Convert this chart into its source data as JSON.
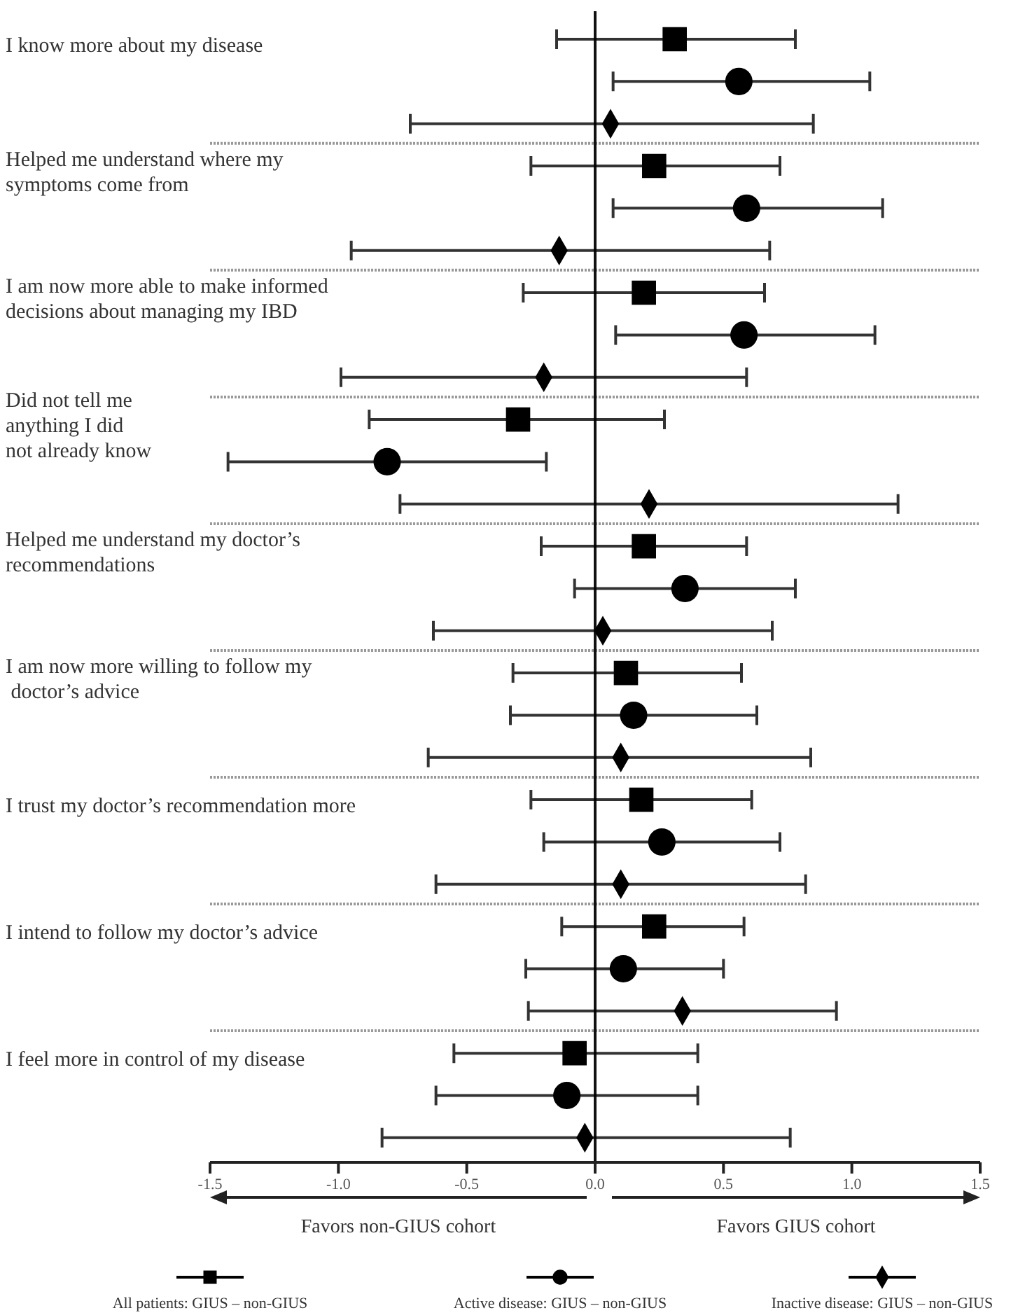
{
  "chart_data": {
    "type": "scatter",
    "orientation": "horizontal",
    "categories": [
      "I know more about my disease",
      null,
      null,
      "Helped me understand where my\nsymptoms come from",
      null,
      null,
      "I am now more able to make informed\ndecisions about managing my IBD",
      null,
      null,
      "Did not tell me\nanything I did\nnot already know",
      null,
      null,
      "Helped me understand my doctor’s\nrecommendations",
      null,
      null,
      "I am now more willing to follow my\n doctor’s advice",
      null,
      null,
      "I trust my doctor’s recommendation more",
      null,
      null,
      "I intend to follow my doctor’s advice",
      null,
      null,
      "I feel more in control of my disease",
      null,
      null
    ],
    "series": [
      {
        "name": "All patients: GIUS – non-GIUS",
        "color": "#000000",
        "marker": "square",
        "values": [
          0.31,
          null,
          null,
          0.23,
          null,
          null,
          0.19,
          null,
          null,
          -0.3,
          null,
          null,
          0.19,
          null,
          null,
          0.12,
          null,
          null,
          0.18,
          null,
          null,
          0.23,
          null,
          null,
          -0.08,
          null,
          null
        ],
        "errors": [
          [
            -0.15,
            0.78
          ],
          null,
          null,
          [
            -0.25,
            0.72
          ],
          null,
          null,
          [
            -0.28,
            0.66
          ],
          null,
          null,
          [
            -0.88,
            0.27
          ],
          null,
          null,
          [
            -0.21,
            0.59
          ],
          null,
          null,
          [
            -0.32,
            0.57
          ],
          null,
          null,
          [
            -0.25,
            0.61
          ],
          null,
          null,
          [
            -0.13,
            0.58
          ],
          null,
          null,
          [
            -0.55,
            0.4
          ],
          null,
          null
        ]
      },
      {
        "name": "Active disease: GIUS – non-GIUS",
        "color": "#000000",
        "marker": "circle",
        "values": [
          null,
          0.56,
          null,
          null,
          0.59,
          null,
          null,
          0.58,
          null,
          null,
          -0.81,
          null,
          null,
          0.35,
          null,
          null,
          0.15,
          null,
          null,
          0.26,
          null,
          null,
          0.11,
          null,
          null,
          -0.11,
          null
        ],
        "errors": [
          null,
          [
            0.07,
            1.07
          ],
          null,
          null,
          [
            0.07,
            1.12
          ],
          null,
          null,
          [
            0.08,
            1.09
          ],
          null,
          null,
          [
            -1.43,
            -0.19
          ],
          null,
          null,
          [
            -0.08,
            0.78
          ],
          null,
          null,
          [
            -0.33,
            0.63
          ],
          null,
          null,
          [
            -0.2,
            0.72
          ],
          null,
          null,
          [
            -0.27,
            0.5
          ],
          null,
          null,
          [
            -0.62,
            0.4
          ],
          null
        ]
      },
      {
        "name": "Inactive disease: GIUS – non-GIUS",
        "color": "#000000",
        "marker": "diamond",
        "values": [
          null,
          null,
          0.06,
          null,
          null,
          -0.14,
          null,
          null,
          -0.2,
          null,
          null,
          0.21,
          null,
          null,
          0.03,
          null,
          null,
          0.1,
          null,
          null,
          0.1,
          null,
          null,
          0.34,
          null,
          null,
          -0.04
        ],
        "errors": [
          null,
          null,
          [
            -0.72,
            0.85
          ],
          null,
          null,
          [
            -0.95,
            0.68
          ],
          null,
          null,
          [
            -0.99,
            0.59
          ],
          null,
          null,
          [
            -0.76,
            1.18
          ],
          null,
          null,
          [
            -0.63,
            0.69
          ],
          null,
          null,
          [
            -0.65,
            0.84
          ],
          null,
          null,
          [
            -0.62,
            0.82
          ],
          null,
          null,
          [
            -0.26,
            0.94
          ],
          null,
          null,
          [
            -0.83,
            0.76
          ]
        ]
      }
    ],
    "xlim": [
      -1.5,
      1.5
    ],
    "xticks": [
      -1.5,
      {
        "value": -1,
        "label": "-1.0"
      },
      -0.5,
      {
        "value": 0,
        "label": "0.0"
      },
      0.5,
      {
        "value": 1,
        "label": "1.0"
      },
      1.5
    ],
    "ref_lines": [
      {
        "axis": "x",
        "value": 0
      }
    ],
    "annotations": [
      "Favors non-GIUS cohort",
      "Favors GIUS cohort"
    ],
    "legend": "bottom",
    "grid": "y"
  }
}
